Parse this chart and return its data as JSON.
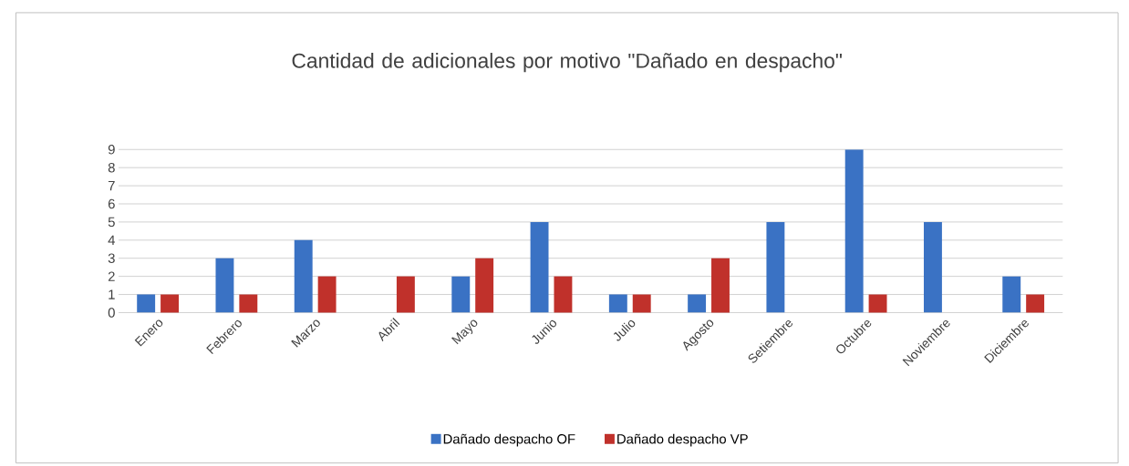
{
  "chart_data": {
    "type": "bar",
    "title": "Cantidad de adicionales por motivo \"Dañado en despacho\"",
    "categories": [
      "Enero",
      "Febrero",
      "Marzo",
      "Abril",
      "Mayo",
      "Junio",
      "Julio",
      "Agosto",
      "Setiembre",
      "Octubre",
      "Noviembre",
      "Diciembre"
    ],
    "series": [
      {
        "name": "Dañado despacho OF",
        "color": "#3a72c4",
        "values": [
          1,
          3,
          4,
          0,
          2,
          5,
          1,
          1,
          5,
          9,
          5,
          2
        ]
      },
      {
        "name": "Dañado despacho VP",
        "color": "#c0312b",
        "values": [
          1,
          1,
          2,
          2,
          3,
          2,
          1,
          3,
          0,
          1,
          0,
          1
        ]
      }
    ],
    "ylim": [
      0,
      9
    ],
    "yticks": [
      0,
      1,
      2,
      3,
      4,
      5,
      6,
      7,
      8,
      9
    ],
    "grid": "y",
    "legend": "bottom"
  }
}
